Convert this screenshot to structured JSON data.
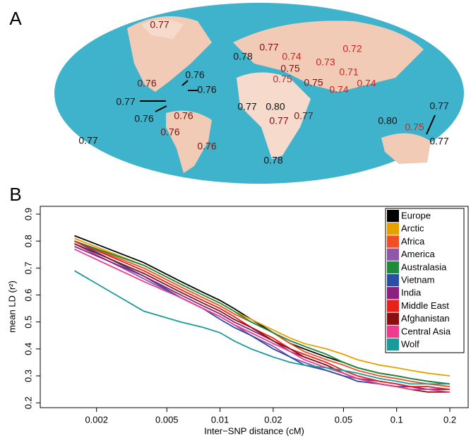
{
  "map": {
    "panel_label": "A",
    "labels": [
      {
        "text": "0.77",
        "color": "#7a1010"
      },
      {
        "text": "0.78",
        "color": "#111111"
      },
      {
        "text": "0.77",
        "color": "#7a1010"
      },
      {
        "text": "0.74",
        "color": "#d42020"
      },
      {
        "text": "0.75",
        "color": "#7a1010"
      },
      {
        "text": "0.75",
        "color": "#d42020"
      },
      {
        "text": "0.73",
        "color": "#d42020"
      },
      {
        "text": "0.72",
        "color": "#d42020"
      },
      {
        "text": "0.71",
        "color": "#d42020"
      },
      {
        "text": "0.75",
        "color": "#7a1010"
      },
      {
        "text": "0.74",
        "color": "#d42020"
      },
      {
        "text": "0.74",
        "color": "#d42020"
      },
      {
        "text": "0.76",
        "color": "#7a1010"
      },
      {
        "text": "0.76",
        "color": "#111111"
      },
      {
        "text": "0.76",
        "color": "#111111"
      },
      {
        "text": "0.77",
        "color": "#111111"
      },
      {
        "text": "0.76",
        "color": "#111111"
      },
      {
        "text": "0.76",
        "color": "#7a1010"
      },
      {
        "text": "0.76",
        "color": "#7a1010"
      },
      {
        "text": "0.76",
        "color": "#7a1010"
      },
      {
        "text": "0.77",
        "color": "#111111"
      },
      {
        "text": "0.80",
        "color": "#111111"
      },
      {
        "text": "0.77",
        "color": "#7a1010"
      },
      {
        "text": "0.77",
        "color": "#7a1010"
      },
      {
        "text": "0.80",
        "color": "#111111"
      },
      {
        "text": "0.75",
        "color": "#d42020"
      },
      {
        "text": "0.77",
        "color": "#111111"
      },
      {
        "text": "0.77",
        "color": "#111111"
      },
      {
        "text": "0.77",
        "color": "#111111"
      },
      {
        "text": "0.78",
        "color": "#111111"
      }
    ]
  },
  "chart_data": {
    "type": "line",
    "panel_label": "B",
    "x_label": "Inter−SNP distance (cM)",
    "y_label": "mean LD (r²)",
    "xscale": "log",
    "xlim": [
      0.00096,
      0.254
    ],
    "ylim": [
      0.182,
      0.929
    ],
    "xticks": [
      0.002,
      0.005,
      0.01,
      0.02,
      0.05,
      0.1,
      0.2
    ],
    "yticks": [
      0.2,
      0.3,
      0.4,
      0.5,
      0.6,
      0.7,
      0.8,
      0.9
    ],
    "legend": "top-right",
    "x": [
      0.0015,
      0.0037,
      0.006,
      0.008,
      0.01,
      0.012,
      0.015,
      0.02,
      0.025,
      0.03,
      0.04,
      0.05,
      0.06,
      0.08,
      0.1,
      0.12,
      0.15,
      0.2
    ],
    "series": [
      {
        "name": "Europe",
        "color": "#000000",
        "values": [
          0.82,
          0.72,
          0.65,
          0.61,
          0.58,
          0.55,
          0.51,
          0.46,
          0.42,
          0.4,
          0.37,
          0.35,
          0.33,
          0.31,
          0.3,
          0.29,
          0.28,
          0.27
        ]
      },
      {
        "name": "Arctic",
        "color": "#e6a000",
        "values": [
          0.81,
          0.71,
          0.64,
          0.6,
          0.57,
          0.54,
          0.51,
          0.47,
          0.44,
          0.42,
          0.4,
          0.38,
          0.36,
          0.34,
          0.33,
          0.32,
          0.31,
          0.3
        ]
      },
      {
        "name": "Africa",
        "color": "#f04e23",
        "values": [
          0.8,
          0.7,
          0.63,
          0.59,
          0.56,
          0.53,
          0.5,
          0.46,
          0.42,
          0.39,
          0.36,
          0.34,
          0.32,
          0.3,
          0.29,
          0.28,
          0.27,
          0.26
        ]
      },
      {
        "name": "America",
        "color": "#8e57a8",
        "values": [
          0.79,
          0.66,
          0.59,
          0.55,
          0.52,
          0.49,
          0.45,
          0.41,
          0.37,
          0.35,
          0.32,
          0.3,
          0.29,
          0.27,
          0.26,
          0.26,
          0.25,
          0.25
        ]
      },
      {
        "name": "Australasia",
        "color": "#1f8a3c",
        "values": [
          0.8,
          0.71,
          0.64,
          0.6,
          0.57,
          0.54,
          0.5,
          0.46,
          0.43,
          0.41,
          0.38,
          0.35,
          0.33,
          0.31,
          0.3,
          0.29,
          0.28,
          0.27
        ]
      },
      {
        "name": "Vietnam",
        "color": "#2b4ea2",
        "values": [
          0.8,
          0.67,
          0.59,
          0.55,
          0.51,
          0.48,
          0.45,
          0.4,
          0.37,
          0.34,
          0.32,
          0.3,
          0.28,
          0.27,
          0.26,
          0.26,
          0.25,
          0.25
        ]
      },
      {
        "name": "India",
        "color": "#8b2080",
        "values": [
          0.78,
          0.67,
          0.6,
          0.56,
          0.53,
          0.5,
          0.47,
          0.43,
          0.39,
          0.37,
          0.34,
          0.31,
          0.29,
          0.28,
          0.27,
          0.26,
          0.25,
          0.25
        ]
      },
      {
        "name": "Middle East",
        "color": "#e8221b",
        "values": [
          0.8,
          0.69,
          0.62,
          0.58,
          0.55,
          0.52,
          0.48,
          0.44,
          0.4,
          0.38,
          0.35,
          0.32,
          0.3,
          0.28,
          0.27,
          0.26,
          0.26,
          0.25
        ]
      },
      {
        "name": "Afghanistan",
        "color": "#8b0f0f",
        "values": [
          0.79,
          0.68,
          0.61,
          0.57,
          0.54,
          0.51,
          0.48,
          0.43,
          0.4,
          0.37,
          0.34,
          0.31,
          0.29,
          0.27,
          0.26,
          0.25,
          0.24,
          0.24
        ]
      },
      {
        "name": "Central Asia",
        "color": "#ef3b8c",
        "values": [
          0.77,
          0.65,
          0.59,
          0.55,
          0.52,
          0.49,
          0.46,
          0.42,
          0.39,
          0.36,
          0.33,
          0.31,
          0.29,
          0.27,
          0.26,
          0.25,
          0.25,
          0.24
        ]
      },
      {
        "name": "Wolf",
        "color": "#1a9a9a",
        "values": [
          0.69,
          0.54,
          0.5,
          0.48,
          0.46,
          0.43,
          0.4,
          0.37,
          0.35,
          0.34,
          0.33,
          0.32,
          0.31,
          0.29,
          0.28,
          0.27,
          0.27,
          0.27
        ]
      }
    ]
  }
}
